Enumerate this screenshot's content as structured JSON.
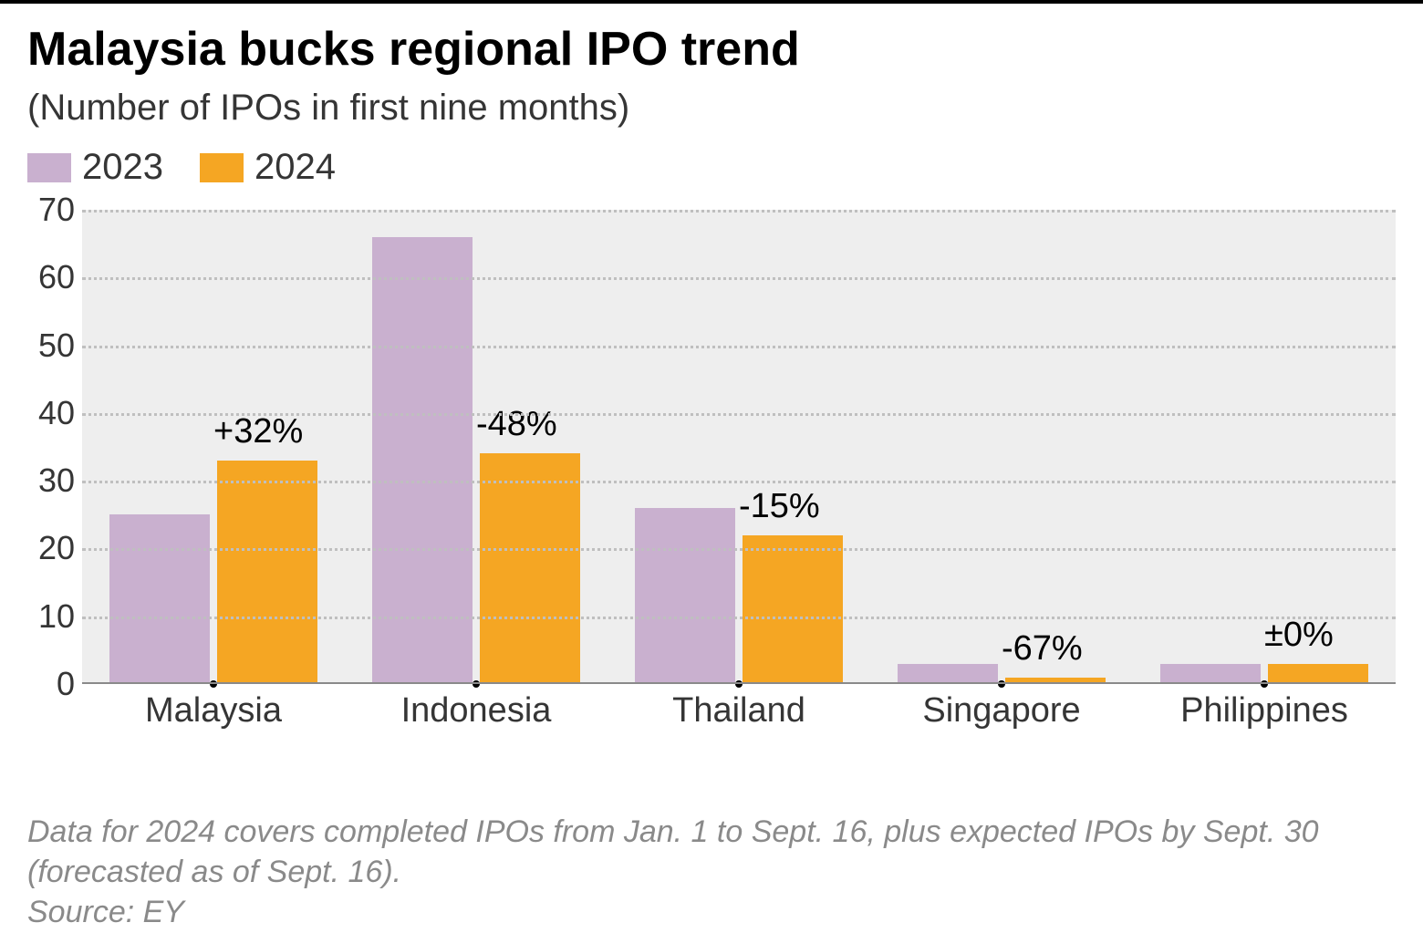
{
  "title": "Malaysia bucks regional IPO trend",
  "subtitle": "(Number of IPOs in first nine months)",
  "legend": {
    "series1": {
      "label": "2023",
      "color": "#c9b0cf"
    },
    "series2": {
      "label": "2024",
      "color": "#f5a623"
    }
  },
  "chart": {
    "type": "grouped-bar",
    "ylim": [
      0,
      70
    ],
    "ytick_step": 10,
    "yticks": [
      0,
      10,
      20,
      30,
      40,
      50,
      60,
      70
    ],
    "plot_bg": "#eeeeee",
    "grid_color": "#bfbfbf",
    "baseline_color": "#8a8a8a",
    "bar_colors": {
      "2023": "#c9b0cf",
      "2024": "#f5a623"
    },
    "label_fontsize": 36,
    "pct_fontsize": 38,
    "categories": [
      "Malaysia",
      "Indonesia",
      "Thailand",
      "Singapore",
      "Philippines"
    ],
    "data": [
      {
        "country": "Malaysia",
        "v2023": 25,
        "v2024": 33,
        "pct": "+32%"
      },
      {
        "country": "Indonesia",
        "v2023": 66,
        "v2024": 34,
        "pct": "-48%"
      },
      {
        "country": "Thailand",
        "v2023": 26,
        "v2024": 22,
        "pct": "-15%"
      },
      {
        "country": "Singapore",
        "v2023": 3,
        "v2024": 1,
        "pct": "-67%"
      },
      {
        "country": "Philippines",
        "v2023": 3,
        "v2024": 3,
        "pct": "±0%"
      }
    ]
  },
  "footnote": {
    "line1": "Data for 2024 covers completed IPOs from Jan. 1 to Sept. 16, plus expected IPOs by Sept. 30 (forecasted as of Sept. 16).",
    "line2": "Source: EY"
  }
}
